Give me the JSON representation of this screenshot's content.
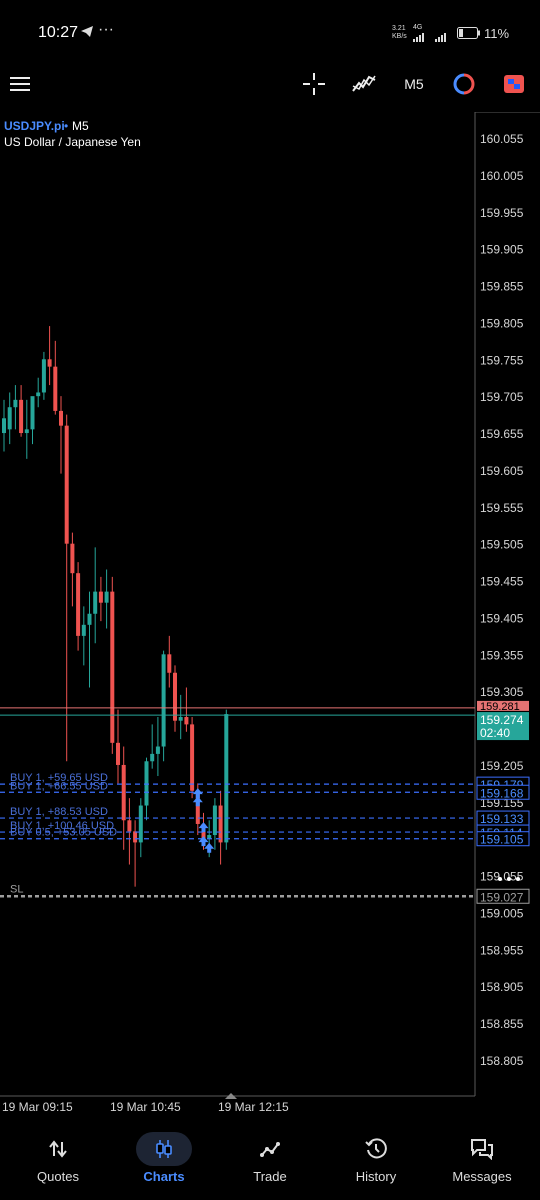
{
  "status_bar": {
    "time": "10:27",
    "speed_value": "3.21",
    "speed_unit": "KB/s",
    "network": "4G",
    "battery": "11%"
  },
  "toolbar": {
    "timeframe": "M5"
  },
  "chart_header": {
    "symbol": "USDJPY.pi",
    "timeframe": "M5",
    "description": "US Dollar / Japanese Yen"
  },
  "chart_data": {
    "type": "candlestick",
    "y_ticks": [
      "160.055",
      "160.005",
      "159.955",
      "159.905",
      "159.855",
      "159.805",
      "159.755",
      "159.705",
      "159.655",
      "159.605",
      "159.555",
      "159.505",
      "159.455",
      "159.405",
      "159.355",
      "159.305",
      "159.255",
      "159.205",
      "159.155",
      "159.105",
      "159.055",
      "159.005",
      "158.955",
      "158.905",
      "158.855",
      "158.805"
    ],
    "x_ticks": [
      "19 Mar 09:15",
      "19 Mar 10:45",
      "19 Mar 12:15"
    ],
    "ylim": [
      158.78,
      160.08
    ],
    "bid_price": "159.281",
    "ask_price": "159.274",
    "candle_timer": "02:40",
    "colors": {
      "bull": "#26a69a",
      "bear": "#ef5350",
      "position_line": "#3b6fff",
      "sl_line": "#9e9e9e"
    },
    "candles": [
      {
        "o": 159.655,
        "h": 159.7,
        "l": 159.63,
        "c": 159.675
      },
      {
        "o": 159.66,
        "h": 159.71,
        "l": 159.64,
        "c": 159.69
      },
      {
        "o": 159.69,
        "h": 159.72,
        "l": 159.66,
        "c": 159.7
      },
      {
        "o": 159.7,
        "h": 159.72,
        "l": 159.65,
        "c": 159.655
      },
      {
        "o": 159.655,
        "h": 159.7,
        "l": 159.62,
        "c": 159.66
      },
      {
        "o": 159.66,
        "h": 159.7,
        "l": 159.64,
        "c": 159.705
      },
      {
        "o": 159.705,
        "h": 159.73,
        "l": 159.69,
        "c": 159.71
      },
      {
        "o": 159.71,
        "h": 159.765,
        "l": 159.7,
        "c": 159.755
      },
      {
        "o": 159.755,
        "h": 159.8,
        "l": 159.72,
        "c": 159.745
      },
      {
        "o": 159.745,
        "h": 159.78,
        "l": 159.68,
        "c": 159.685
      },
      {
        "o": 159.685,
        "h": 159.705,
        "l": 159.6,
        "c": 159.665
      },
      {
        "o": 159.665,
        "h": 159.68,
        "l": 159.21,
        "c": 159.505
      },
      {
        "o": 159.505,
        "h": 159.52,
        "l": 159.42,
        "c": 159.465
      },
      {
        "o": 159.465,
        "h": 159.48,
        "l": 159.36,
        "c": 159.38
      },
      {
        "o": 159.38,
        "h": 159.42,
        "l": 159.34,
        "c": 159.395
      },
      {
        "o": 159.395,
        "h": 159.44,
        "l": 159.31,
        "c": 159.41
      },
      {
        "o": 159.41,
        "h": 159.5,
        "l": 159.37,
        "c": 159.44
      },
      {
        "o": 159.44,
        "h": 159.46,
        "l": 159.4,
        "c": 159.425
      },
      {
        "o": 159.425,
        "h": 159.47,
        "l": 159.39,
        "c": 159.44
      },
      {
        "o": 159.44,
        "h": 159.46,
        "l": 159.22,
        "c": 159.235
      },
      {
        "o": 159.235,
        "h": 159.28,
        "l": 159.18,
        "c": 159.205
      },
      {
        "o": 159.205,
        "h": 159.23,
        "l": 159.09,
        "c": 159.13
      },
      {
        "o": 159.13,
        "h": 159.16,
        "l": 159.07,
        "c": 159.115
      },
      {
        "o": 159.115,
        "h": 159.13,
        "l": 159.04,
        "c": 159.1
      },
      {
        "o": 159.1,
        "h": 159.16,
        "l": 159.08,
        "c": 159.15
      },
      {
        "o": 159.15,
        "h": 159.215,
        "l": 159.13,
        "c": 159.21
      },
      {
        "o": 159.21,
        "h": 159.26,
        "l": 159.2,
        "c": 159.22
      },
      {
        "o": 159.22,
        "h": 159.27,
        "l": 159.19,
        "c": 159.23
      },
      {
        "o": 159.23,
        "h": 159.36,
        "l": 159.21,
        "c": 159.355
      },
      {
        "o": 159.355,
        "h": 159.38,
        "l": 159.31,
        "c": 159.33
      },
      {
        "o": 159.33,
        "h": 159.34,
        "l": 159.25,
        "c": 159.265
      },
      {
        "o": 159.265,
        "h": 159.3,
        "l": 159.24,
        "c": 159.27
      },
      {
        "o": 159.27,
        "h": 159.31,
        "l": 159.25,
        "c": 159.26
      },
      {
        "o": 159.26,
        "h": 159.27,
        "l": 159.16,
        "c": 159.17
      },
      {
        "o": 159.17,
        "h": 159.18,
        "l": 159.11,
        "c": 159.125
      },
      {
        "o": 159.125,
        "h": 159.14,
        "l": 159.09,
        "c": 159.105
      },
      {
        "o": 159.105,
        "h": 159.13,
        "l": 159.08,
        "c": 159.11
      },
      {
        "o": 159.11,
        "h": 159.16,
        "l": 159.09,
        "c": 159.15
      },
      {
        "o": 159.15,
        "h": 159.17,
        "l": 159.07,
        "c": 159.1
      },
      {
        "o": 159.1,
        "h": 159.28,
        "l": 159.09,
        "c": 159.274
      }
    ],
    "positions": [
      {
        "label": "BUY 1, +59.65 USD",
        "price": "159.179"
      },
      {
        "label": "BUY 1, +66.55 USD",
        "price": "159.168"
      },
      {
        "label": "BUY 1, +88.53 USD",
        "price": "159.133"
      },
      {
        "label": "BUY 1, +100.46 USD",
        "price": "159.114"
      },
      {
        "label": "BUY 0.5, +53.05 USD",
        "price": "159.105"
      }
    ],
    "stop_loss": {
      "label": "SL",
      "price": "159.027"
    }
  },
  "bottom_nav": [
    {
      "label": "Quotes",
      "icon": "sort-arrows-icon",
      "active": false
    },
    {
      "label": "Charts",
      "icon": "candles-icon",
      "active": true
    },
    {
      "label": "Trade",
      "icon": "trend-icon",
      "active": false
    },
    {
      "label": "History",
      "icon": "history-icon",
      "active": false
    },
    {
      "label": "Messages",
      "icon": "messages-icon",
      "active": false
    }
  ]
}
